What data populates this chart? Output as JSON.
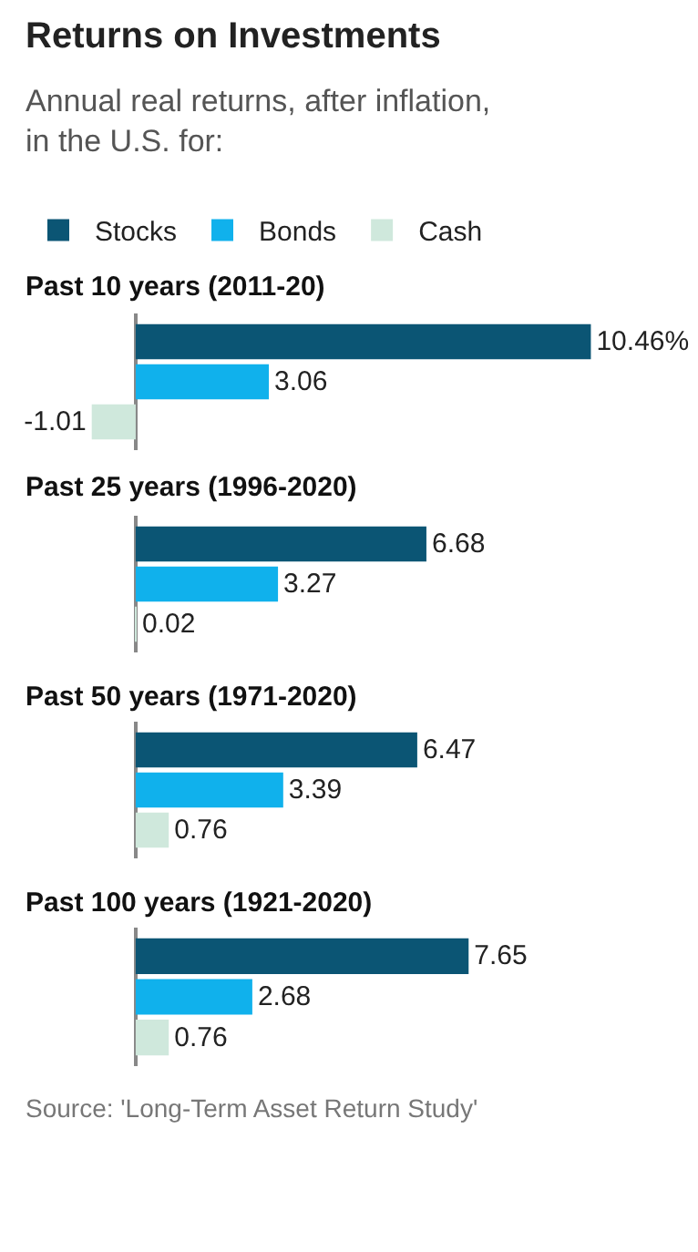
{
  "chart_data": [
    {
      "type": "bar",
      "orientation": "horizontal",
      "title": "Returns on Investments",
      "subtitle": "Annual real returns, after inflation, in the U.S. for:",
      "annotations": [
        "Past 10 years (2011-20)"
      ],
      "legend": "top left",
      "categories": [
        null
      ],
      "tick_labels": false,
      "series": [
        {
          "name": "Stocks",
          "color": "#0b5574",
          "values": [
            10.46
          ],
          "value_labels": [
            "10.46%"
          ]
        },
        {
          "name": "Bonds",
          "color": "#10b1ec",
          "values": [
            3.06
          ],
          "value_labels": [
            "3.06"
          ]
        },
        {
          "name": "Cash",
          "color": "#cfe8dc",
          "values": [
            -1.01
          ],
          "value_labels": [
            "-1.01"
          ]
        }
      ]
    },
    {
      "type": "bar",
      "orientation": "horizontal",
      "annotations": [
        "Past 25 years (1996-2020)"
      ],
      "categories": [
        null
      ],
      "tick_labels": false,
      "data_labels": true,
      "series": [
        {
          "color": "#0b5574",
          "values": [
            6.68
          ]
        },
        {
          "color": "#10b1ec",
          "values": [
            3.27
          ]
        },
        {
          "color": "#cfe8dc",
          "values": [
            0.02
          ]
        }
      ]
    },
    {
      "type": "bar",
      "orientation": "horizontal",
      "annotations": [
        "Past 50 years (1971-2020)"
      ],
      "categories": [
        null
      ],
      "tick_labels": false,
      "data_labels": true,
      "series": [
        {
          "color": "#0b5574",
          "values": [
            6.47
          ]
        },
        {
          "color": "#10b1ec",
          "values": [
            3.39
          ]
        },
        {
          "color": "#cfe8dc",
          "values": [
            0.76
          ]
        }
      ]
    },
    {
      "type": "bar",
      "orientation": "horizontal",
      "annotations": [
        "Past 100 years (1921-2020)",
        "Source: 'Long-Term Asset Return Study'"
      ],
      "categories": [
        null
      ],
      "tick_labels": false,
      "data_labels": true,
      "series": [
        {
          "color": "#0b5574",
          "values": [
            7.65
          ]
        },
        {
          "color": "#10b1ec",
          "values": [
            2.68
          ]
        },
        {
          "color": "#cfe8dc",
          "values": [
            0.76
          ]
        }
      ]
    }
  ]
}
